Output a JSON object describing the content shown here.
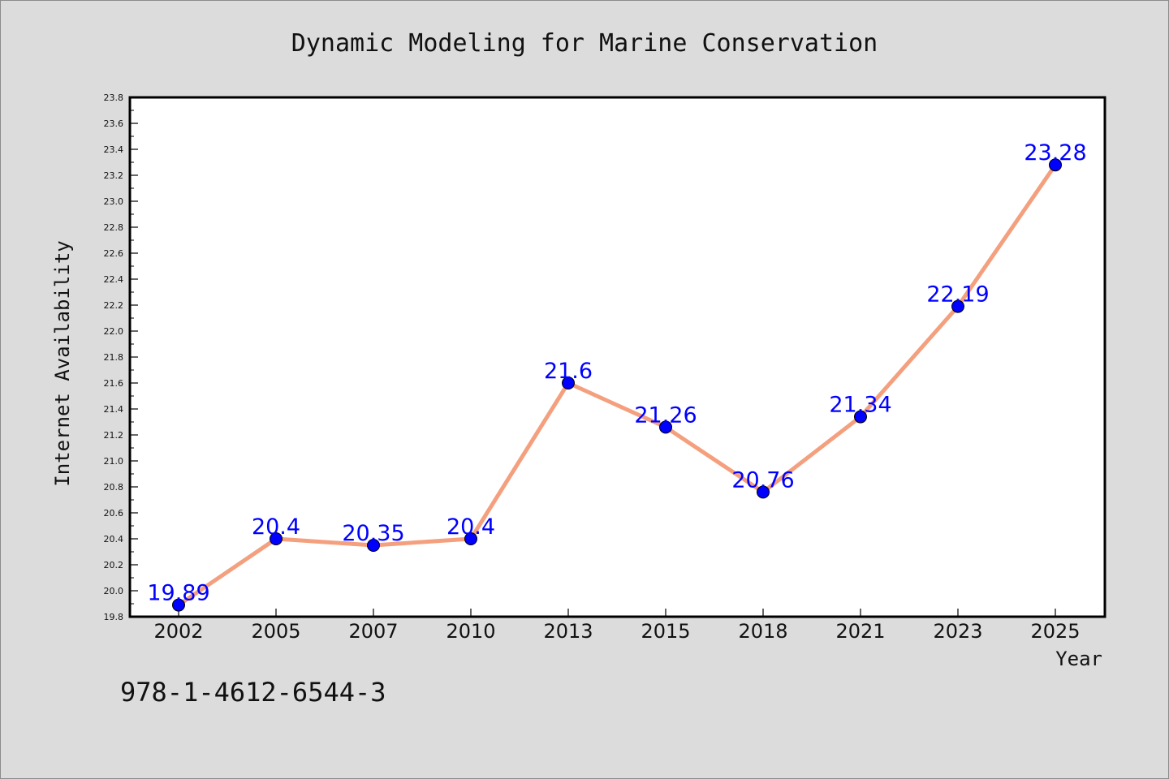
{
  "chart_data": {
    "type": "line",
    "title": "Dynamic Modeling for Marine Conservation",
    "xlabel": "Year",
    "ylabel": "Internet Availability",
    "categories": [
      "2002",
      "2005",
      "2007",
      "2010",
      "2013",
      "2015",
      "2018",
      "2021",
      "2023",
      "2025"
    ],
    "series": [
      {
        "values": [
          19.89,
          20.4,
          20.35,
          20.4,
          21.6,
          21.26,
          20.76,
          21.34,
          22.19,
          23.28
        ],
        "labels": [
          "19.89",
          "20.4",
          "20.35",
          "20.4",
          "21.6",
          "21.26",
          "20.76",
          "21.34",
          "22.19",
          "23.28"
        ],
        "line_color": "#f4a07e",
        "marker_color": "#0000ff"
      }
    ],
    "ylim": [
      19.8,
      23.8
    ],
    "ytick_labels": [
      "19.8",
      "20.0",
      "20.2",
      "20.4",
      "20.6",
      "20.8",
      "21.0",
      "21.2",
      "21.4",
      "21.6",
      "21.8",
      "22.0",
      "22.2",
      "22.4",
      "22.6",
      "22.8",
      "23.0",
      "23.2",
      "23.4",
      "23.6",
      "23.8"
    ],
    "grid": false,
    "legend": "none"
  },
  "footnote": "978-1-4612-6544-3",
  "colors": {
    "background": "#dcdcdc",
    "plot_background": "#ffffff",
    "axis": "#000000",
    "data_label": "#0000ff"
  }
}
